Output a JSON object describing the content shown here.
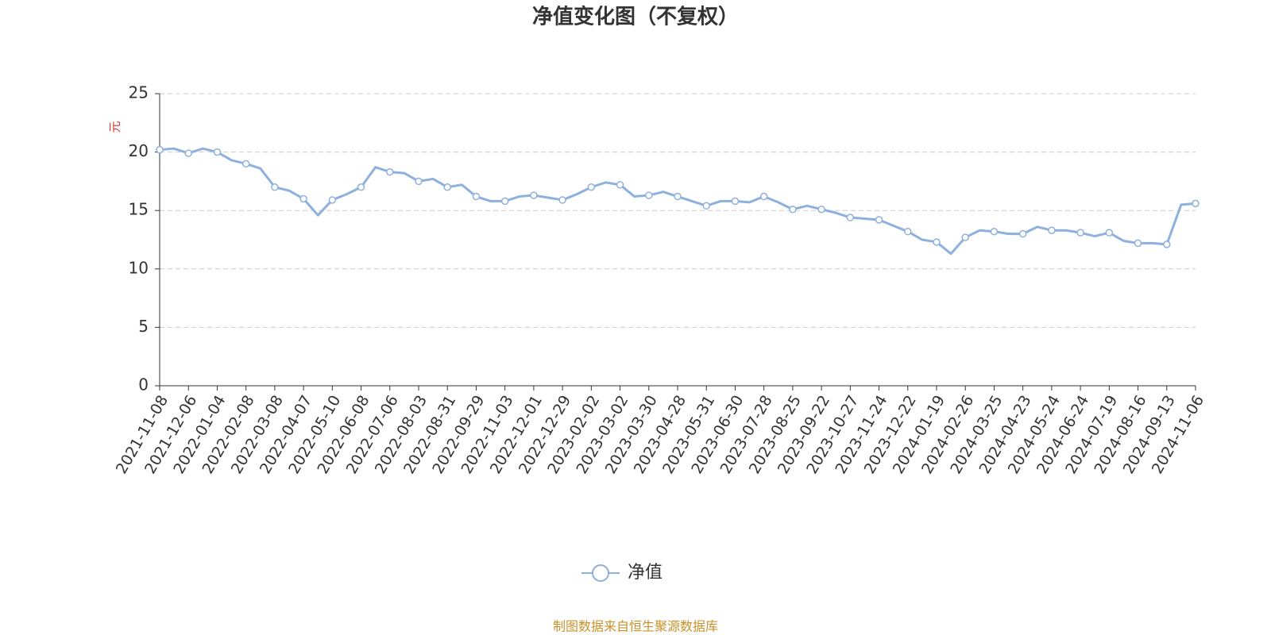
{
  "chart_data": {
    "type": "line",
    "title": "净值变化图（不复权）",
    "y_label": "元",
    "source": "制图数据来自恒生聚源数据库",
    "categories": [
      "2021-11-08",
      null,
      "2021-12-06",
      null,
      "2022-01-04",
      null,
      "2022-02-08",
      null,
      "2022-03-08",
      null,
      "2022-04-07",
      null,
      "2022-05-10",
      null,
      "2022-06-08",
      null,
      "2022-07-06",
      null,
      "2022-08-03",
      null,
      "2022-08-31",
      null,
      "2022-09-29",
      null,
      "2022-11-03",
      null,
      "2022-12-01",
      null,
      "2022-12-29",
      null,
      "2023-02-02",
      null,
      "2023-03-02",
      null,
      "2023-03-30",
      null,
      "2023-04-28",
      null,
      "2023-05-31",
      null,
      "2023-06-30",
      null,
      "2023-07-28",
      null,
      "2023-08-25",
      null,
      "2023-09-22",
      null,
      "2023-10-27",
      null,
      "2023-11-24",
      null,
      "2023-12-22",
      null,
      "2024-01-19",
      null,
      "2024-02-26",
      null,
      "2024-03-25",
      null,
      "2024-04-23",
      null,
      "2024-05-24",
      null,
      "2024-06-24",
      null,
      "2024-07-19",
      null,
      "2024-08-16",
      null,
      "2024-09-13",
      null,
      "2024-11-06"
    ],
    "series": [
      {
        "name": "净值",
        "color": "#8eb0dd",
        "values": [
          20.2,
          20.3,
          19.9,
          20.3,
          20.0,
          19.3,
          19.0,
          18.6,
          17.0,
          16.7,
          16.0,
          14.6,
          15.9,
          16.4,
          17.0,
          18.7,
          18.3,
          18.2,
          17.5,
          17.7,
          17.0,
          17.2,
          16.2,
          15.8,
          15.8,
          16.2,
          16.3,
          16.1,
          15.9,
          16.4,
          17.0,
          17.4,
          17.2,
          16.2,
          16.3,
          16.6,
          16.2,
          15.8,
          15.4,
          15.8,
          15.8,
          15.7,
          16.2,
          15.7,
          15.1,
          15.4,
          15.1,
          14.8,
          14.4,
          14.3,
          14.2,
          13.7,
          13.2,
          12.5,
          12.3,
          11.3,
          12.7,
          13.3,
          13.2,
          13.0,
          13.0,
          13.6,
          13.3,
          13.3,
          13.1,
          12.8,
          13.1,
          12.4,
          12.2,
          12.2,
          12.1,
          15.5,
          15.6
        ]
      }
    ],
    "ylim": [
      0,
      25
    ],
    "yticks": [
      0,
      5,
      10,
      15,
      20,
      25
    ],
    "grid": true
  }
}
